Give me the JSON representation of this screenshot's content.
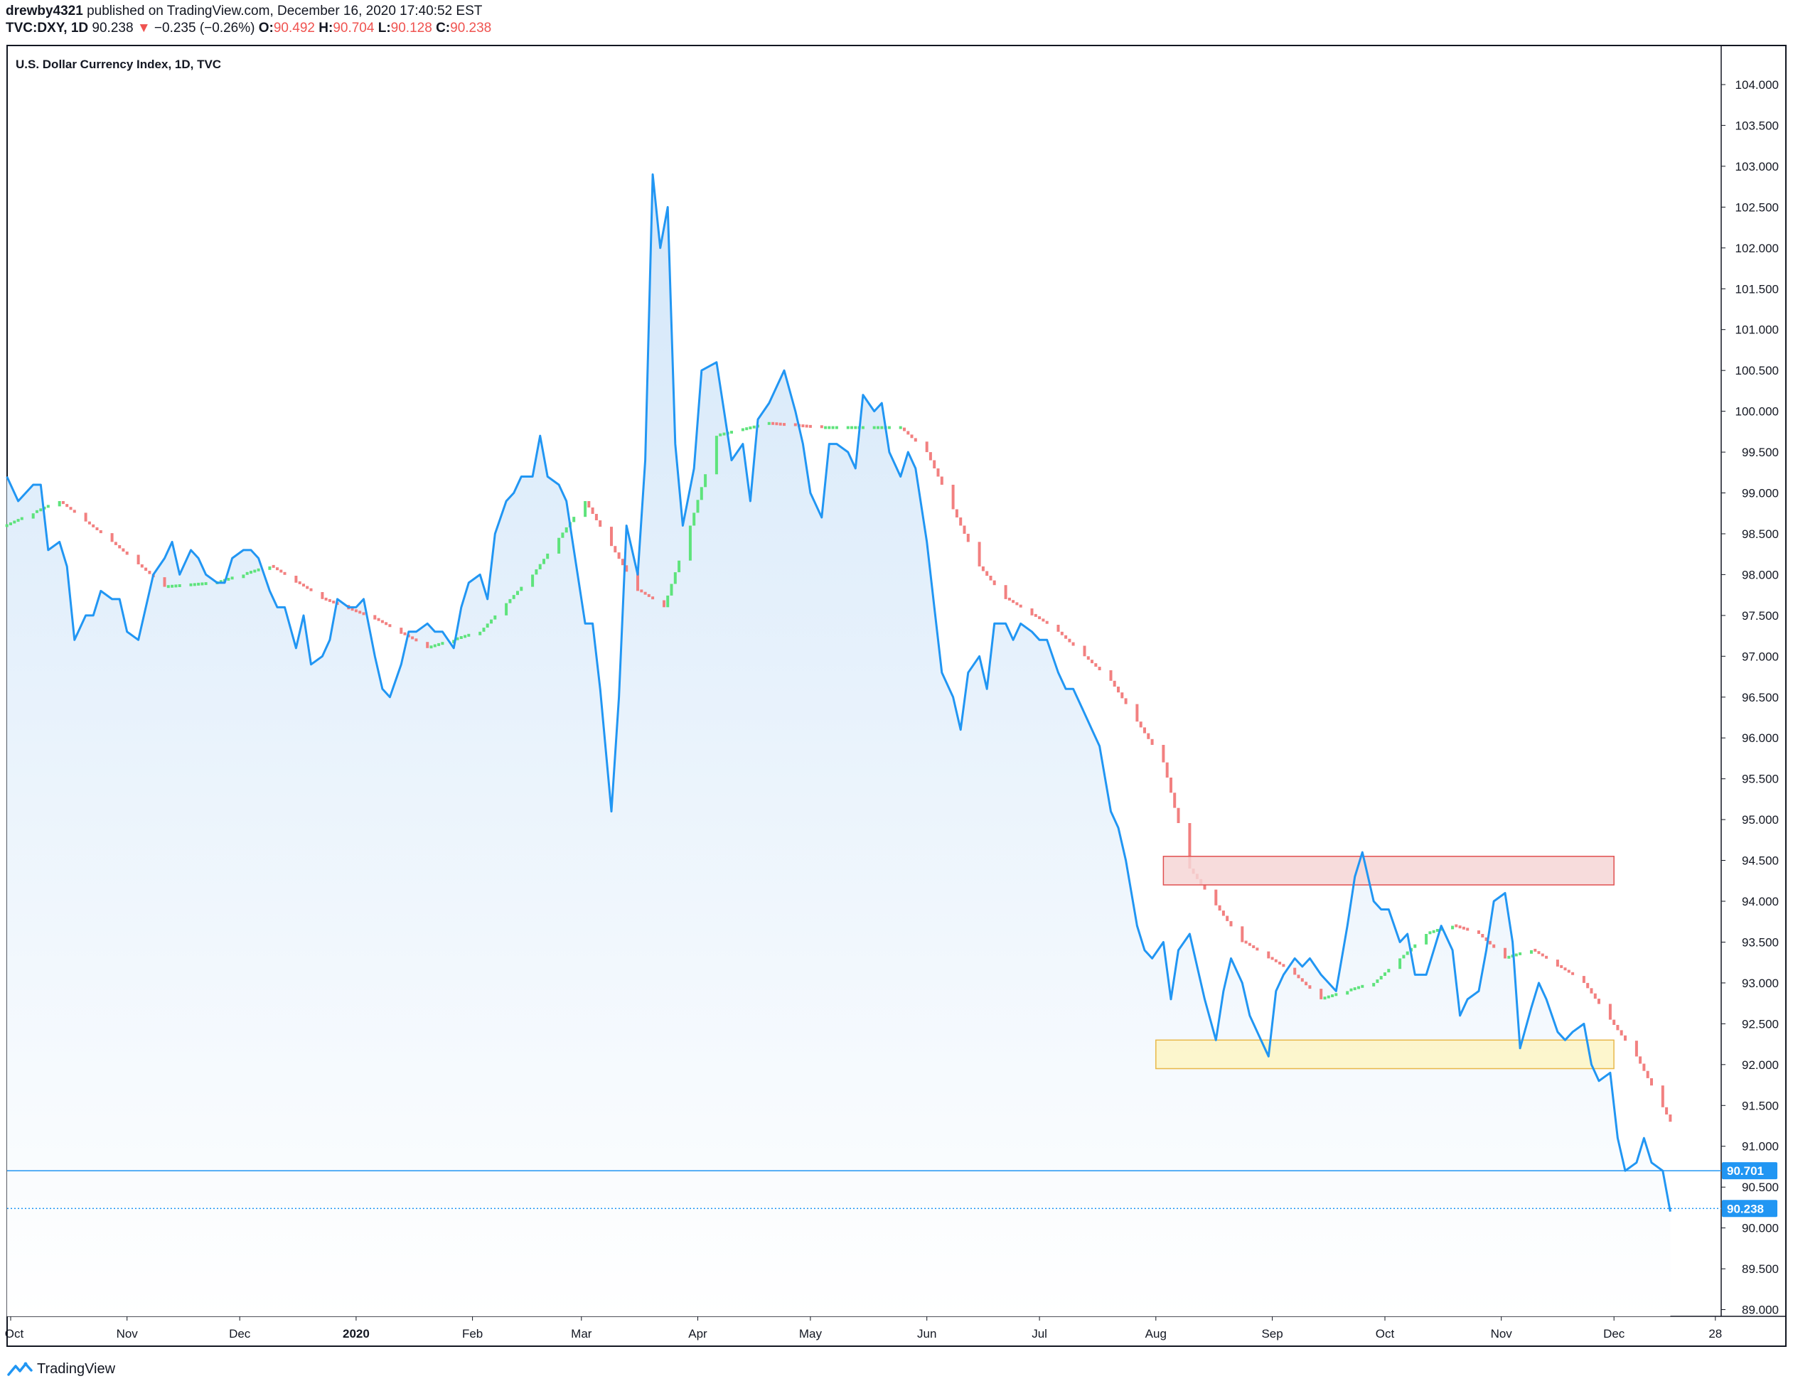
{
  "header": {
    "author": "drewby4321",
    "published": "published on TradingView.com, December 16, 2020 17:40:52 EST",
    "symbol": "TVC:DXY, 1D",
    "price": "90.238",
    "arrow": "▼",
    "change": "−0.235 (−0.26%)",
    "o_label": "O:",
    "o_value": "90.492",
    "h_label": "H:",
    "h_value": "90.704",
    "l_label": "L:",
    "l_value": "90.128",
    "c_label": "C:",
    "c_value": "90.238"
  },
  "brand": {
    "label": "TradingView",
    "icon": "tradingview-logo-icon"
  },
  "colors": {
    "line": "#2196f3",
    "area_top": "#d4e7f9",
    "area_bottom": "#ffffff",
    "ma_up": "#5ee37c",
    "ma_down": "#f28080",
    "red_zone_fill": "#f6d6d6",
    "red_zone_stroke": "#e05050",
    "yellow_zone_fill": "#fdf5c4",
    "yellow_zone_stroke": "#e8b84a",
    "price_label_bg": "#2196f3",
    "negative": "#ef5350"
  },
  "chart_data": {
    "type": "area",
    "title": "U.S. Dollar Currency Index, 1D, TVC",
    "xlabel": "",
    "ylabel": "",
    "ylim": [
      89.0,
      104.5
    ],
    "grid": false,
    "y_ticks": [
      "89.000",
      "89.500",
      "90.000",
      "90.500",
      "91.000",
      "91.500",
      "92.000",
      "92.500",
      "93.000",
      "93.500",
      "94.000",
      "94.500",
      "95.000",
      "95.500",
      "96.000",
      "96.500",
      "97.000",
      "97.500",
      "98.000",
      "98.500",
      "99.000",
      "99.500",
      "100.000",
      "100.500",
      "101.000",
      "101.500",
      "102.000",
      "102.500",
      "103.000",
      "103.500",
      "104.000"
    ],
    "x_tick_labels": [
      {
        "label": "Oct",
        "date": "2019-10-01"
      },
      {
        "label": "Nov",
        "date": "2019-11-01"
      },
      {
        "label": "Dec",
        "date": "2019-12-01"
      },
      {
        "label": "2020",
        "date": "2020-01-01"
      },
      {
        "label": "Feb",
        "date": "2020-02-01"
      },
      {
        "label": "Mar",
        "date": "2020-03-01"
      },
      {
        "label": "Apr",
        "date": "2020-04-01"
      },
      {
        "label": "May",
        "date": "2020-05-01"
      },
      {
        "label": "Jun",
        "date": "2020-06-01"
      },
      {
        "label": "Jul",
        "date": "2020-07-01"
      },
      {
        "label": "Aug",
        "date": "2020-08-01"
      },
      {
        "label": "Sep",
        "date": "2020-09-01"
      },
      {
        "label": "Oct",
        "date": "2020-10-01"
      },
      {
        "label": "Nov",
        "date": "2020-11-01"
      },
      {
        "label": "Dec",
        "date": "2020-12-01"
      },
      {
        "label": "28",
        "date": "2020-12-28"
      }
    ],
    "series": [
      {
        "name": "",
        "points": [
          [
            "2019-09-30",
            99.2
          ],
          [
            "2019-10-03",
            98.9
          ],
          [
            "2019-10-07",
            99.1
          ],
          [
            "2019-10-09",
            99.1
          ],
          [
            "2019-10-11",
            98.3
          ],
          [
            "2019-10-14",
            98.4
          ],
          [
            "2019-10-16",
            98.1
          ],
          [
            "2019-10-18",
            97.2
          ],
          [
            "2019-10-21",
            97.5
          ],
          [
            "2019-10-23",
            97.5
          ],
          [
            "2019-10-25",
            97.8
          ],
          [
            "2019-10-28",
            97.7
          ],
          [
            "2019-10-30",
            97.7
          ],
          [
            "2019-11-01",
            97.3
          ],
          [
            "2019-11-04",
            97.2
          ],
          [
            "2019-11-06",
            97.6
          ],
          [
            "2019-11-08",
            98.0
          ],
          [
            "2019-11-11",
            98.2
          ],
          [
            "2019-11-13",
            98.4
          ],
          [
            "2019-11-15",
            98.0
          ],
          [
            "2019-11-18",
            98.3
          ],
          [
            "2019-11-20",
            98.2
          ],
          [
            "2019-11-22",
            98.0
          ],
          [
            "2019-11-25",
            97.9
          ],
          [
            "2019-11-27",
            97.9
          ],
          [
            "2019-11-29",
            98.2
          ],
          [
            "2019-12-02",
            98.3
          ],
          [
            "2019-12-04",
            98.3
          ],
          [
            "2019-12-06",
            98.2
          ],
          [
            "2019-12-09",
            97.8
          ],
          [
            "2019-12-11",
            97.6
          ],
          [
            "2019-12-13",
            97.6
          ],
          [
            "2019-12-16",
            97.1
          ],
          [
            "2019-12-18",
            97.5
          ],
          [
            "2019-12-20",
            96.9
          ],
          [
            "2019-12-23",
            97.0
          ],
          [
            "2019-12-25",
            97.2
          ],
          [
            "2019-12-27",
            97.7
          ],
          [
            "2019-12-30",
            97.6
          ],
          [
            "2020-01-01",
            97.6
          ],
          [
            "2020-01-03",
            97.7
          ],
          [
            "2020-01-06",
            97.0
          ],
          [
            "2020-01-08",
            96.6
          ],
          [
            "2020-01-10",
            96.5
          ],
          [
            "2020-01-13",
            96.9
          ],
          [
            "2020-01-15",
            97.3
          ],
          [
            "2020-01-17",
            97.3
          ],
          [
            "2020-01-20",
            97.4
          ],
          [
            "2020-01-22",
            97.3
          ],
          [
            "2020-01-24",
            97.3
          ],
          [
            "2020-01-27",
            97.1
          ],
          [
            "2020-01-29",
            97.6
          ],
          [
            "2020-01-31",
            97.9
          ],
          [
            "2020-02-03",
            98.0
          ],
          [
            "2020-02-05",
            97.7
          ],
          [
            "2020-02-07",
            98.5
          ],
          [
            "2020-02-10",
            98.9
          ],
          [
            "2020-02-12",
            99.0
          ],
          [
            "2020-02-14",
            99.2
          ],
          [
            "2020-02-17",
            99.2
          ],
          [
            "2020-02-19",
            99.7
          ],
          [
            "2020-02-21",
            99.2
          ],
          [
            "2020-02-24",
            99.1
          ],
          [
            "2020-02-26",
            98.9
          ],
          [
            "2020-02-28",
            98.3
          ],
          [
            "2020-03-02",
            97.4
          ],
          [
            "2020-03-04",
            97.4
          ],
          [
            "2020-03-06",
            96.6
          ],
          [
            "2020-03-09",
            95.1
          ],
          [
            "2020-03-11",
            96.5
          ],
          [
            "2020-03-13",
            98.6
          ],
          [
            "2020-03-16",
            98.0
          ],
          [
            "2020-03-18",
            99.4
          ],
          [
            "2020-03-20",
            102.9
          ],
          [
            "2020-03-22",
            102.0
          ],
          [
            "2020-03-24",
            102.5
          ],
          [
            "2020-03-26",
            99.6
          ],
          [
            "2020-03-28",
            98.6
          ],
          [
            "2020-03-31",
            99.3
          ],
          [
            "2020-04-02",
            100.5
          ],
          [
            "2020-04-06",
            100.6
          ],
          [
            "2020-04-08",
            100.0
          ],
          [
            "2020-04-10",
            99.4
          ],
          [
            "2020-04-13",
            99.6
          ],
          [
            "2020-04-15",
            98.9
          ],
          [
            "2020-04-17",
            99.9
          ],
          [
            "2020-04-20",
            100.1
          ],
          [
            "2020-04-22",
            100.3
          ],
          [
            "2020-04-24",
            100.5
          ],
          [
            "2020-04-27",
            100.0
          ],
          [
            "2020-04-29",
            99.6
          ],
          [
            "2020-05-01",
            99.0
          ],
          [
            "2020-05-04",
            98.7
          ],
          [
            "2020-05-06",
            99.6
          ],
          [
            "2020-05-08",
            99.6
          ],
          [
            "2020-05-11",
            99.5
          ],
          [
            "2020-05-13",
            99.3
          ],
          [
            "2020-05-15",
            100.2
          ],
          [
            "2020-05-18",
            100.0
          ],
          [
            "2020-05-20",
            100.1
          ],
          [
            "2020-05-22",
            99.5
          ],
          [
            "2020-05-25",
            99.2
          ],
          [
            "2020-05-27",
            99.5
          ],
          [
            "2020-05-29",
            99.3
          ],
          [
            "2020-06-01",
            98.4
          ],
          [
            "2020-06-03",
            97.6
          ],
          [
            "2020-06-05",
            96.8
          ],
          [
            "2020-06-08",
            96.5
          ],
          [
            "2020-06-10",
            96.1
          ],
          [
            "2020-06-12",
            96.8
          ],
          [
            "2020-06-15",
            97.0
          ],
          [
            "2020-06-17",
            96.6
          ],
          [
            "2020-06-19",
            97.4
          ],
          [
            "2020-06-22",
            97.4
          ],
          [
            "2020-06-24",
            97.2
          ],
          [
            "2020-06-26",
            97.4
          ],
          [
            "2020-06-29",
            97.3
          ],
          [
            "2020-07-01",
            97.2
          ],
          [
            "2020-07-03",
            97.2
          ],
          [
            "2020-07-06",
            96.8
          ],
          [
            "2020-07-08",
            96.6
          ],
          [
            "2020-07-10",
            96.6
          ],
          [
            "2020-07-13",
            96.3
          ],
          [
            "2020-07-15",
            96.1
          ],
          [
            "2020-07-17",
            95.9
          ],
          [
            "2020-07-20",
            95.1
          ],
          [
            "2020-07-22",
            94.9
          ],
          [
            "2020-07-24",
            94.5
          ],
          [
            "2020-07-27",
            93.7
          ],
          [
            "2020-07-29",
            93.4
          ],
          [
            "2020-07-31",
            93.3
          ],
          [
            "2020-08-03",
            93.5
          ],
          [
            "2020-08-05",
            92.8
          ],
          [
            "2020-08-07",
            93.4
          ],
          [
            "2020-08-10",
            93.6
          ],
          [
            "2020-08-12",
            93.2
          ],
          [
            "2020-08-14",
            92.8
          ],
          [
            "2020-08-17",
            92.3
          ],
          [
            "2020-08-19",
            92.9
          ],
          [
            "2020-08-21",
            93.3
          ],
          [
            "2020-08-24",
            93.0
          ],
          [
            "2020-08-26",
            92.6
          ],
          [
            "2020-08-28",
            92.4
          ],
          [
            "2020-08-31",
            92.1
          ],
          [
            "2020-09-02",
            92.9
          ],
          [
            "2020-09-04",
            93.1
          ],
          [
            "2020-09-07",
            93.3
          ],
          [
            "2020-09-09",
            93.2
          ],
          [
            "2020-09-11",
            93.3
          ],
          [
            "2020-09-14",
            93.1
          ],
          [
            "2020-09-16",
            93.0
          ],
          [
            "2020-09-18",
            92.9
          ],
          [
            "2020-09-21",
            93.7
          ],
          [
            "2020-09-23",
            94.3
          ],
          [
            "2020-09-25",
            94.6
          ],
          [
            "2020-09-28",
            94.0
          ],
          [
            "2020-09-30",
            93.9
          ],
          [
            "2020-10-02",
            93.9
          ],
          [
            "2020-10-05",
            93.5
          ],
          [
            "2020-10-07",
            93.6
          ],
          [
            "2020-10-09",
            93.1
          ],
          [
            "2020-10-12",
            93.1
          ],
          [
            "2020-10-14",
            93.4
          ],
          [
            "2020-10-16",
            93.7
          ],
          [
            "2020-10-19",
            93.4
          ],
          [
            "2020-10-21",
            92.6
          ],
          [
            "2020-10-23",
            92.8
          ],
          [
            "2020-10-26",
            92.9
          ],
          [
            "2020-10-28",
            93.4
          ],
          [
            "2020-10-30",
            94.0
          ],
          [
            "2020-11-02",
            94.1
          ],
          [
            "2020-11-04",
            93.5
          ],
          [
            "2020-11-06",
            92.2
          ],
          [
            "2020-11-09",
            92.7
          ],
          [
            "2020-11-11",
            93.0
          ],
          [
            "2020-11-13",
            92.8
          ],
          [
            "2020-11-16",
            92.4
          ],
          [
            "2020-11-18",
            92.3
          ],
          [
            "2020-11-20",
            92.4
          ],
          [
            "2020-11-23",
            92.5
          ],
          [
            "2020-11-25",
            92.0
          ],
          [
            "2020-11-27",
            91.8
          ],
          [
            "2020-11-30",
            91.9
          ],
          [
            "2020-12-02",
            91.1
          ],
          [
            "2020-12-04",
            90.7
          ],
          [
            "2020-12-07",
            90.8
          ],
          [
            "2020-12-09",
            91.1
          ],
          [
            "2020-12-11",
            90.8
          ],
          [
            "2020-12-14",
            90.7
          ],
          [
            "2020-12-16",
            90.2
          ]
        ]
      },
      {
        "name": "",
        "points": [
          [
            "2019-09-30",
            98.6
          ],
          [
            "2019-10-14",
            98.9
          ],
          [
            "2019-10-28",
            98.4
          ],
          [
            "2019-11-11",
            97.85
          ],
          [
            "2019-11-25",
            97.9
          ],
          [
            "2019-12-09",
            98.1
          ],
          [
            "2019-12-23",
            97.7
          ],
          [
            "2020-01-06",
            97.45
          ],
          [
            "2020-01-20",
            97.1
          ],
          [
            "2020-02-03",
            97.3
          ],
          [
            "2020-02-17",
            98.0
          ],
          [
            "2020-03-02",
            98.9
          ],
          [
            "2020-03-16",
            97.8
          ],
          [
            "2020-03-23",
            97.6
          ],
          [
            "2020-03-30",
            98.6
          ],
          [
            "2020-04-06",
            99.7
          ],
          [
            "2020-04-20",
            99.85
          ],
          [
            "2020-05-04",
            99.8
          ],
          [
            "2020-05-18",
            99.8
          ],
          [
            "2020-05-25",
            99.8
          ],
          [
            "2020-06-01",
            99.5
          ],
          [
            "2020-06-15",
            98.1
          ],
          [
            "2020-06-22",
            97.7
          ],
          [
            "2020-07-06",
            97.3
          ],
          [
            "2020-07-20",
            96.7
          ],
          [
            "2020-08-03",
            95.7
          ],
          [
            "2020-08-10",
            94.4
          ],
          [
            "2020-08-24",
            93.5
          ],
          [
            "2020-09-07",
            93.1
          ],
          [
            "2020-09-14",
            92.8
          ],
          [
            "2020-09-28",
            93.0
          ],
          [
            "2020-10-12",
            93.6
          ],
          [
            "2020-10-19",
            93.7
          ],
          [
            "2020-10-26",
            93.6
          ],
          [
            "2020-11-02",
            93.3
          ],
          [
            "2020-11-09",
            93.4
          ],
          [
            "2020-11-23",
            93.0
          ],
          [
            "2020-12-07",
            92.1
          ],
          [
            "2020-12-16",
            91.3
          ]
        ]
      }
    ],
    "zones": [
      {
        "start": "2020-08-03",
        "end": "2020-12-01",
        "top": 94.55,
        "bottom": 94.2,
        "color": "red"
      },
      {
        "start": "2020-08-01",
        "end": "2020-12-01",
        "top": 92.3,
        "bottom": 91.95,
        "color": "yellow"
      }
    ],
    "reference_lines": [
      {
        "value": 90.701,
        "label": "90.701",
        "style": "solid"
      },
      {
        "value": 90.238,
        "label": "90.238",
        "style": "dotted"
      }
    ],
    "legend": "none"
  }
}
